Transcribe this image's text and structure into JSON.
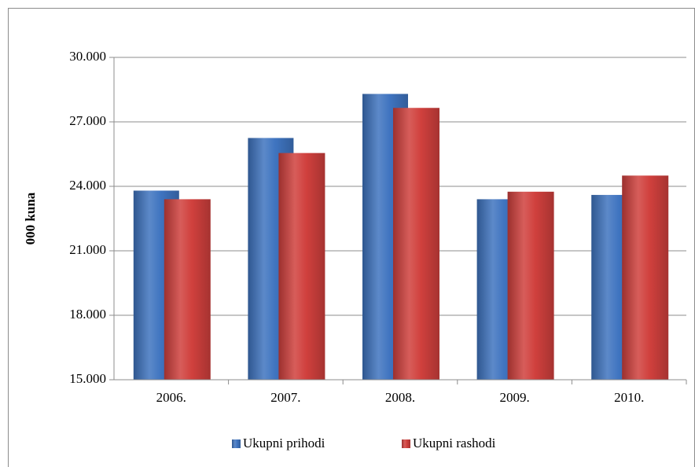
{
  "chart_data": {
    "type": "bar",
    "y_label": "000 kuna",
    "categories": [
      "2006.",
      "2007.",
      "2008.",
      "2009.",
      "2010."
    ],
    "series": [
      {
        "name": "Ukupni prihodi",
        "color": "#3f74c0",
        "values": [
          23800,
          26250,
          28300,
          23400,
          23600
        ]
      },
      {
        "name": "Ukupni rashodi",
        "color": "#d0403d",
        "values": [
          23400,
          25550,
          27650,
          23750,
          24500
        ]
      }
    ],
    "ylim": [
      15000,
      30000
    ],
    "yticks": [
      {
        "value": 15000,
        "label": "15.000"
      },
      {
        "value": 18000,
        "label": "18.000"
      },
      {
        "value": 21000,
        "label": "21.000"
      },
      {
        "value": 24000,
        "label": "24.000"
      },
      {
        "value": 27000,
        "label": "27.000"
      },
      {
        "value": 30000,
        "label": "30.000"
      }
    ],
    "grid": true,
    "legend": "bottom"
  }
}
